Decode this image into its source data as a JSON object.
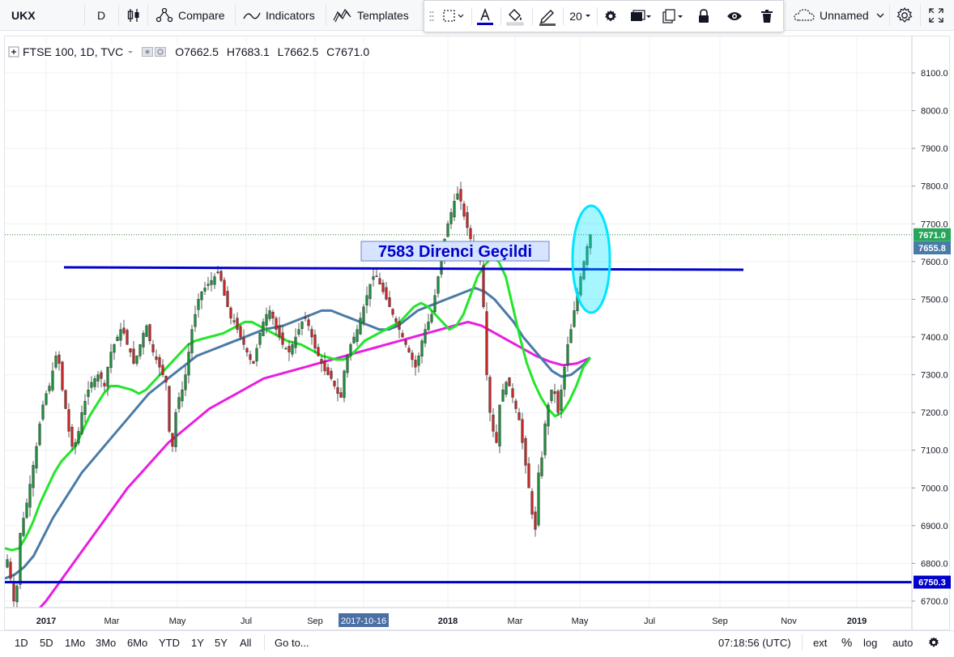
{
  "toolbar": {
    "symbol": "UKX",
    "interval": "D",
    "compare_label": "Compare",
    "indicators_label": "Indicators",
    "templates_label": "Templates",
    "layout_name": "Unnamed"
  },
  "drawing_toolbar": {
    "line_width": "20",
    "accent_color": "#2962ff"
  },
  "legend": {
    "title": "FTSE 100, 1D, TVC",
    "open": "O7662.5",
    "high": "H7683.1",
    "low": "L7662.5",
    "close": "C7671.0"
  },
  "annotation": {
    "text": "7583 Direnci Geçildi",
    "color": "#0000cc",
    "box_bg": "#d6e4ff"
  },
  "price_labels": {
    "last": "7671.0",
    "ma": "7655.8",
    "hline": "6750.3"
  },
  "bottombar": {
    "ranges": [
      "1D",
      "5D",
      "1Mo",
      "3Mo",
      "6Mo",
      "YTD",
      "1Y",
      "5Y",
      "All"
    ],
    "goto_label": "Go to...",
    "time": "07:18:56 (UTC)",
    "ext_label": "ext",
    "pct_label": "%",
    "log_label": "log",
    "auto_label": "auto"
  },
  "chart_data": {
    "type": "candlestick",
    "symbol": "FTSE 100",
    "y_ticks": [
      6700,
      6800,
      6900,
      7000,
      7100,
      7200,
      7300,
      7400,
      7500,
      7600,
      7700,
      7800,
      7900,
      8000,
      8100
    ],
    "y_tick_labels": [
      "6700.0",
      "6800.0",
      "6900.0",
      "7000.0",
      "7100.0",
      "7200.0",
      "7300.0",
      "7400.0",
      "7500.0",
      "7600.0",
      "7700.0",
      "7800.0",
      "7900.0",
      "8000.0",
      "8100.0"
    ],
    "ylim": [
      6660,
      8150
    ],
    "x_tick_labels": [
      "2017",
      "Mar",
      "May",
      "Jul",
      "Sep",
      "2017-10-16",
      "2018",
      "Mar",
      "May",
      "Jul",
      "Sep",
      "Nov",
      "2019"
    ],
    "x_tick_bold": [
      true,
      false,
      false,
      false,
      false,
      true,
      true,
      false,
      false,
      false,
      false,
      false,
      true
    ],
    "x_tick_highlight": [
      false,
      false,
      false,
      false,
      false,
      true,
      false,
      false,
      false,
      false,
      false,
      false,
      false
    ],
    "close_series": [
      6810,
      6760,
      6700,
      6740,
      6880,
      6920,
      6960,
      7010,
      7060,
      7110,
      7170,
      7220,
      7250,
      7270,
      7310,
      7350,
      7330,
      7260,
      7210,
      7150,
      7110,
      7120,
      7150,
      7200,
      7230,
      7260,
      7280,
      7290,
      7300,
      7290,
      7270,
      7320,
      7360,
      7380,
      7400,
      7420,
      7410,
      7380,
      7360,
      7330,
      7350,
      7380,
      7410,
      7430,
      7390,
      7360,
      7340,
      7320,
      7300,
      7280,
      7150,
      7110,
      7200,
      7240,
      7260,
      7300,
      7360,
      7420,
      7460,
      7500,
      7520,
      7530,
      7540,
      7550,
      7560,
      7570,
      7550,
      7510,
      7480,
      7450,
      7440,
      7420,
      7400,
      7380,
      7360,
      7340,
      7330,
      7370,
      7410,
      7440,
      7460,
      7470,
      7450,
      7420,
      7400,
      7380,
      7370,
      7360,
      7380,
      7400,
      7420,
      7440,
      7450,
      7430,
      7400,
      7370,
      7350,
      7330,
      7310,
      7300,
      7290,
      7270,
      7250,
      7240,
      7310,
      7350,
      7380,
      7400,
      7420,
      7450,
      7480,
      7510,
      7540,
      7560,
      7560,
      7540,
      7520,
      7500,
      7480,
      7460,
      7440,
      7420,
      7400,
      7380,
      7360,
      7340,
      7320,
      7350,
      7390,
      7420,
      7440,
      7460,
      7510,
      7560,
      7610,
      7660,
      7700,
      7730,
      7760,
      7780,
      7760,
      7720,
      7690,
      7660,
      7640,
      7620,
      7600,
      7480,
      7300,
      7200,
      7150,
      7120,
      7220,
      7260,
      7280,
      7270,
      7240,
      7210,
      7180,
      7120,
      7060,
      7000,
      6930,
      6890,
      7040,
      7080,
      7170,
      7220,
      7260,
      7250,
      7200,
      7260,
      7320,
      7380,
      7420,
      7470,
      7520,
      7560,
      7600,
      7640,
      7671
    ],
    "ma_fast": [
      6840,
      6835,
      6840,
      6870,
      6910,
      6960,
      7000,
      7040,
      7070,
      7090,
      7110,
      7150,
      7190,
      7220,
      7250,
      7270,
      7270,
      7265,
      7260,
      7250,
      7260,
      7280,
      7300,
      7320,
      7340,
      7360,
      7380,
      7390,
      7395,
      7400,
      7405,
      7410,
      7420,
      7430,
      7440,
      7440,
      7430,
      7420,
      7410,
      7400,
      7390,
      7385,
      7380,
      7370,
      7360,
      7350,
      7345,
      7340,
      7340,
      7350,
      7370,
      7390,
      7400,
      7410,
      7420,
      7430,
      7440,
      7460,
      7480,
      7490,
      7480,
      7460,
      7440,
      7420,
      7430,
      7460,
      7510,
      7560,
      7590,
      7610,
      7600,
      7560,
      7480,
      7400,
      7330,
      7280,
      7240,
      7210,
      7190,
      7200,
      7230,
      7270,
      7320,
      7345
    ],
    "ma_mid": [
      6760,
      6770,
      6790,
      6820,
      6870,
      6920,
      6960,
      7000,
      7040,
      7070,
      7100,
      7130,
      7160,
      7190,
      7220,
      7250,
      7270,
      7290,
      7310,
      7330,
      7350,
      7360,
      7370,
      7380,
      7390,
      7400,
      7410,
      7420,
      7425,
      7430,
      7440,
      7450,
      7460,
      7470,
      7470,
      7460,
      7450,
      7440,
      7430,
      7420,
      7420,
      7430,
      7450,
      7470,
      7480,
      7490,
      7500,
      7510,
      7520,
      7530,
      7520,
      7500,
      7470,
      7440,
      7400,
      7370,
      7340,
      7310,
      7295,
      7300,
      7320,
      7345
    ],
    "ma_slow": [
      6660,
      6700,
      6750,
      6800,
      6850,
      6900,
      6950,
      7000,
      7040,
      7080,
      7120,
      7150,
      7180,
      7210,
      7230,
      7250,
      7270,
      7290,
      7300,
      7310,
      7320,
      7330,
      7340,
      7350,
      7360,
      7370,
      7380,
      7390,
      7400,
      7410,
      7420,
      7430,
      7440,
      7430,
      7410,
      7390,
      7370,
      7350,
      7335,
      7325,
      7330,
      7345
    ],
    "resistance_level": 7583,
    "support_level": 6750.3,
    "last_price": 7671.0
  }
}
